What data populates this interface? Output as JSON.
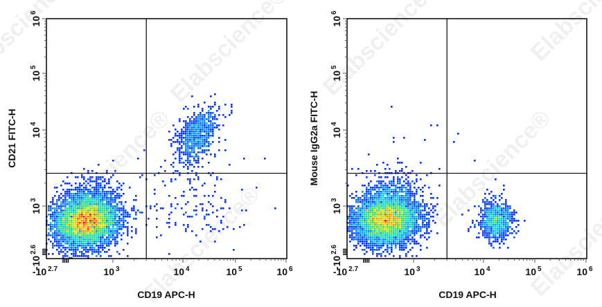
{
  "watermark": "Elabscience®",
  "chart_data": [
    {
      "type": "scatter",
      "style": "density dot plot (blue-to-red pseudocolor)",
      "xlabel": "CD19 APC-H",
      "ylabel": "CD21 FITC-H",
      "x_scale": "biexponential",
      "y_scale": "biexponential",
      "xlim": [
        -500,
        1000000
      ],
      "ylim": [
        -398,
        1000000
      ],
      "x_ticks": [
        {
          "base": "-10",
          "exp": "2.7",
          "value": -500
        },
        {
          "base": "10",
          "exp": "3",
          "value": 1000
        },
        {
          "base": "10",
          "exp": "4",
          "value": 10000
        },
        {
          "base": "10",
          "exp": "5",
          "value": 100000
        },
        {
          "base": "10",
          "exp": "6",
          "value": 1000000
        }
      ],
      "y_ticks": [
        {
          "base": "-10",
          "exp": "2.6",
          "value": -398
        },
        {
          "base": "10",
          "exp": "3",
          "value": 1000
        },
        {
          "base": "10",
          "exp": "4",
          "value": 10000
        },
        {
          "base": "10",
          "exp": "5",
          "value": 100000
        },
        {
          "base": "10",
          "exp": "6",
          "value": 1000000
        }
      ],
      "quadrant_gate": {
        "x": 3000,
        "y": 2700
      },
      "populations": [
        {
          "quadrant": "lower-left",
          "center": [
            400,
            600
          ],
          "relative_events": 6000
        },
        {
          "quadrant": "upper-right",
          "center": [
            19000,
            8600
          ],
          "relative_events": 700
        },
        {
          "quadrant": "lower-right",
          "center": [
            15000,
            900
          ],
          "relative_events": 160
        }
      ]
    },
    {
      "type": "scatter",
      "style": "density dot plot (blue-to-red pseudocolor)",
      "xlabel": "CD19 APC-H",
      "ylabel": "Mouse IgG2a FITC-H",
      "x_scale": "biexponential",
      "y_scale": "biexponential",
      "xlim": [
        -500,
        1000000
      ],
      "ylim": [
        -398,
        1000000
      ],
      "x_ticks": [
        {
          "base": "-10",
          "exp": "2.7",
          "value": -500
        },
        {
          "base": "10",
          "exp": "3",
          "value": 1000
        },
        {
          "base": "10",
          "exp": "4",
          "value": 10000
        },
        {
          "base": "10",
          "exp": "5",
          "value": 100000
        },
        {
          "base": "10",
          "exp": "6",
          "value": 1000000
        }
      ],
      "y_ticks": [
        {
          "base": "-10",
          "exp": "2.6",
          "value": -398
        },
        {
          "base": "10",
          "exp": "3",
          "value": 1000
        },
        {
          "base": "10",
          "exp": "4",
          "value": 10000
        },
        {
          "base": "10",
          "exp": "5",
          "value": 100000
        },
        {
          "base": "10",
          "exp": "6",
          "value": 1000000
        }
      ],
      "quadrant_gate": {
        "x": 3000,
        "y": 2700
      },
      "populations": [
        {
          "quadrant": "lower-left",
          "center": [
            400,
            650
          ],
          "relative_events": 6000
        },
        {
          "quadrant": "lower-right",
          "center": [
            18000,
            600
          ],
          "relative_events": 900
        },
        {
          "quadrant": "upper-left",
          "center": [
            600,
            5000
          ],
          "relative_events": 30
        }
      ]
    }
  ]
}
